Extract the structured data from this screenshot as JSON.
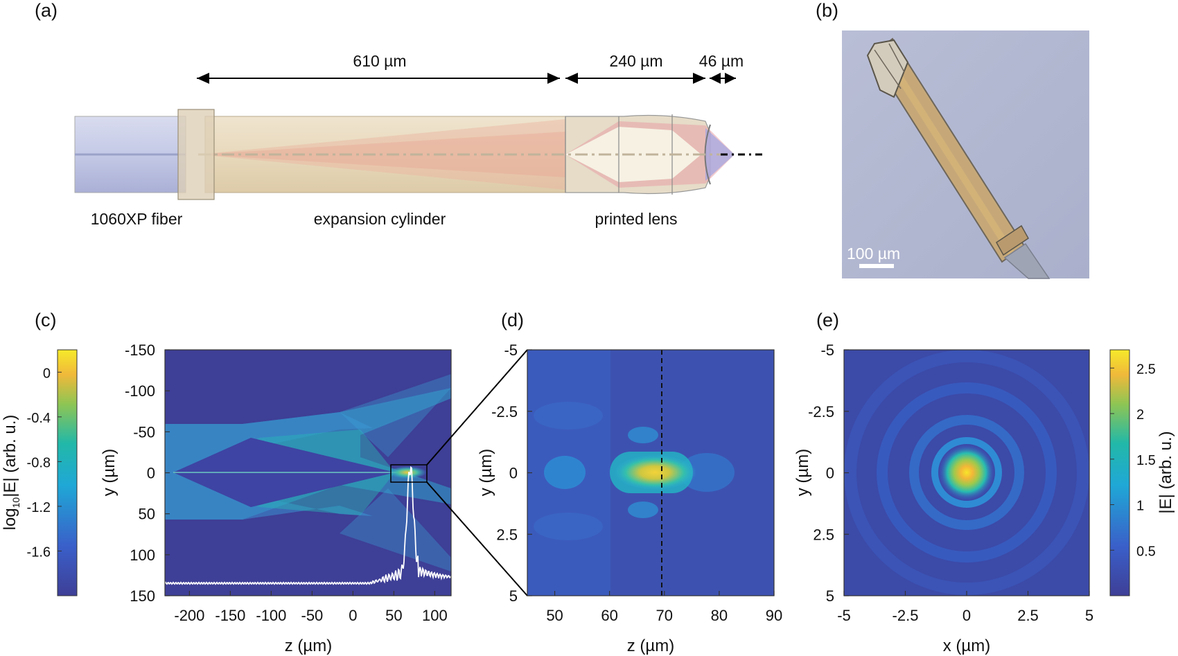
{
  "panels": {
    "a": {
      "label": "(a)",
      "dims": [
        "610 µm",
        "240 µm",
        "46 µm"
      ],
      "components": [
        "1060XP fiber",
        "expansion cylinder",
        "printed lens"
      ]
    },
    "b": {
      "label": "(b)",
      "scale_bar": "100 µm"
    },
    "c": {
      "label": "(c)",
      "xlabel": "z (µm)",
      "ylabel": "y (µm)",
      "xticks": [
        "-200",
        "-150",
        "-100",
        "-50",
        "0",
        "50",
        "100"
      ],
      "yticks": [
        "-150",
        "-100",
        "-50",
        "0",
        "50",
        "100",
        "150"
      ],
      "colorbar_label": "log₁₀|E| (arb. u.)",
      "colorbar_label_parts": [
        "log",
        "10",
        "|E| (arb. u.)"
      ],
      "colorbar_ticks": [
        "0",
        "-0.4",
        "-0.8",
        "-1.2",
        "-1.6"
      ]
    },
    "d": {
      "label": "(d)",
      "xlabel": "z (µm)",
      "ylabel": "y (µm)",
      "xticks": [
        "50",
        "60",
        "70",
        "80",
        "90"
      ],
      "yticks": [
        "-5",
        "-2.5",
        "0",
        "2.5",
        "5"
      ]
    },
    "e": {
      "label": "(e)",
      "xlabel": "x (µm)",
      "ylabel": "y (µm)",
      "xticks": [
        "-5",
        "-2.5",
        "0",
        "2.5",
        "5"
      ],
      "yticks": [
        "-5",
        "-2.5",
        "0",
        "2.5",
        "5"
      ],
      "colorbar_label": "|E| (arb. u.)",
      "colorbar_ticks": [
        "2.5",
        "2",
        "1.5",
        "1",
        "0.5"
      ]
    }
  },
  "chart_data": [
    {
      "type": "heatmap",
      "panel": "c",
      "xlabel": "z (µm)",
      "ylabel": "y (µm)",
      "xlim": [
        -230,
        120
      ],
      "ylim": [
        -150,
        150
      ],
      "colorbar": {
        "label": "log10|E| (arb. u.)",
        "range": [
          -2,
          0.2
        ]
      },
      "zoom_box": {
        "z": [
          45,
          90
        ],
        "y": [
          -10,
          10
        ]
      }
    },
    {
      "type": "heatmap",
      "panel": "d",
      "xlabel": "z (µm)",
      "ylabel": "y (µm)",
      "xlim": [
        45,
        90
      ],
      "ylim": [
        -5,
        5
      ],
      "focus_z": 69.5
    },
    {
      "type": "heatmap",
      "panel": "e",
      "xlabel": "x (µm)",
      "ylabel": "y (µm)",
      "xlim": [
        -5,
        5
      ],
      "ylim": [
        -5,
        5
      ],
      "colorbar": {
        "label": "|E| (arb. u.)",
        "range": [
          0,
          2.7
        ]
      }
    }
  ],
  "colors": {
    "map_low": "#3e3f96",
    "map_mid": "#21b3b8",
    "map_high": "#f5e626"
  }
}
